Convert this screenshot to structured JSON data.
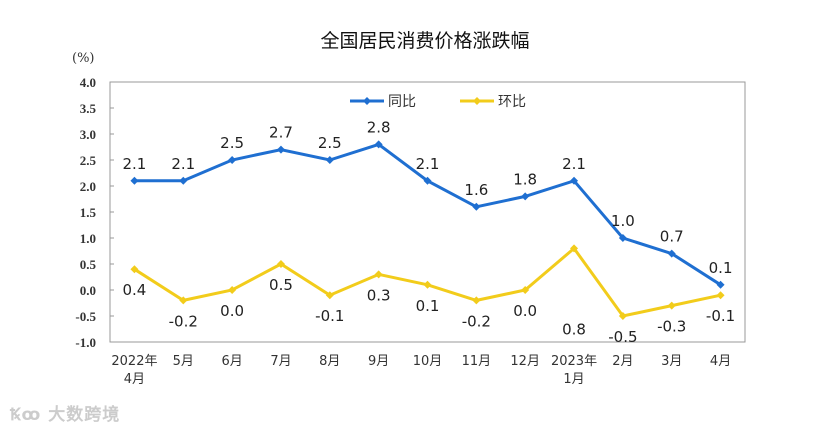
{
  "chart_data": {
    "type": "line",
    "title": "全国居民消费价格涨跌幅",
    "ylabel": "(%)",
    "ylim": [
      -1.0,
      4.0
    ],
    "yticks": [
      -1.0,
      -0.5,
      0.0,
      0.5,
      1.0,
      1.5,
      2.0,
      2.5,
      3.0,
      3.5,
      4.0
    ],
    "categories": [
      [
        "2022年",
        "4月"
      ],
      [
        "5月"
      ],
      [
        "6月"
      ],
      [
        "7月"
      ],
      [
        "8月"
      ],
      [
        "9月"
      ],
      [
        "10月"
      ],
      [
        "11月"
      ],
      [
        "12月"
      ],
      [
        "2023年",
        "1月"
      ],
      [
        "2月"
      ],
      [
        "3月"
      ],
      [
        "4月"
      ]
    ],
    "legend_position": "top-center",
    "grid": false,
    "series": [
      {
        "name": "同比",
        "color": "#1f6fd1",
        "values": [
          2.1,
          2.1,
          2.5,
          2.7,
          2.5,
          2.8,
          2.1,
          1.6,
          1.8,
          2.1,
          1.0,
          0.7,
          0.1
        ]
      },
      {
        "name": "环比",
        "color": "#f2cc1b",
        "values": [
          0.4,
          -0.2,
          0.0,
          0.5,
          -0.1,
          0.3,
          0.1,
          -0.2,
          0.0,
          0.8,
          -0.5,
          -0.3,
          -0.1
        ]
      }
    ]
  },
  "watermark": "大数跨境"
}
